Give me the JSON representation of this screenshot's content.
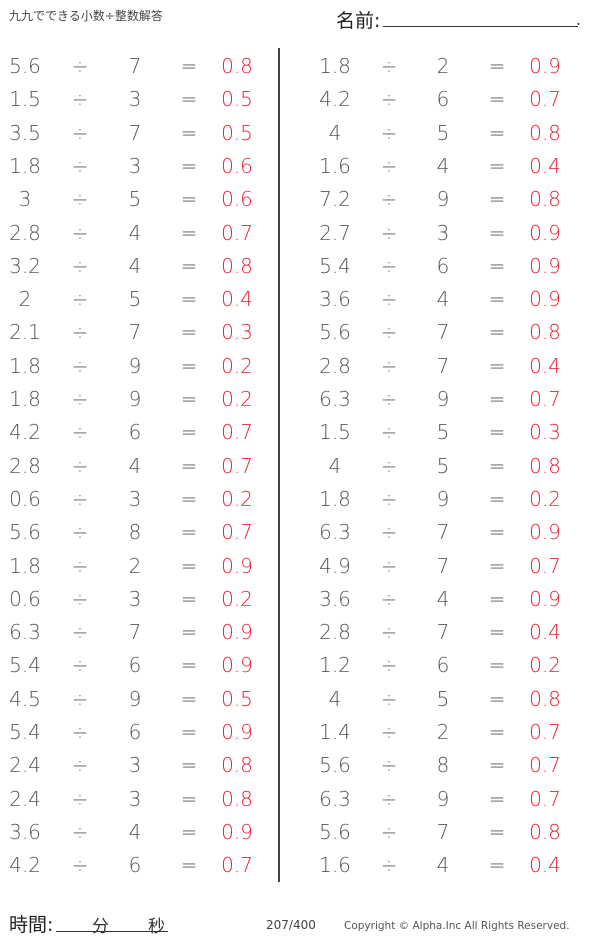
{
  "header": {
    "title": "九九でできる小数÷整数解答",
    "name_label": "名前:",
    "name_end": "."
  },
  "symbols": {
    "divide": "÷",
    "equals": "="
  },
  "left": [
    [
      "5.6",
      "7",
      "0.8"
    ],
    [
      "1.5",
      "3",
      "0.5"
    ],
    [
      "3.5",
      "7",
      "0.5"
    ],
    [
      "1.8",
      "3",
      "0.6"
    ],
    [
      "3",
      "5",
      "0.6"
    ],
    [
      "2.8",
      "4",
      "0.7"
    ],
    [
      "3.2",
      "4",
      "0.8"
    ],
    [
      "2",
      "5",
      "0.4"
    ],
    [
      "2.1",
      "7",
      "0.3"
    ],
    [
      "1.8",
      "9",
      "0.2"
    ],
    [
      "1.8",
      "9",
      "0.2"
    ],
    [
      "4.2",
      "6",
      "0.7"
    ],
    [
      "2.8",
      "4",
      "0.7"
    ],
    [
      "0.6",
      "3",
      "0.2"
    ],
    [
      "5.6",
      "8",
      "0.7"
    ],
    [
      "1.8",
      "2",
      "0.9"
    ],
    [
      "0.6",
      "3",
      "0.2"
    ],
    [
      "6.3",
      "7",
      "0.9"
    ],
    [
      "5.4",
      "6",
      "0.9"
    ],
    [
      "4.5",
      "9",
      "0.5"
    ],
    [
      "5.4",
      "6",
      "0.9"
    ],
    [
      "2.4",
      "3",
      "0.8"
    ],
    [
      "2.4",
      "3",
      "0.8"
    ],
    [
      "3.6",
      "4",
      "0.9"
    ],
    [
      "4.2",
      "6",
      "0.7"
    ]
  ],
  "right": [
    [
      "1.8",
      "2",
      "0.9"
    ],
    [
      "4.2",
      "6",
      "0.7"
    ],
    [
      "4",
      "5",
      "0.8"
    ],
    [
      "1.6",
      "4",
      "0.4"
    ],
    [
      "7.2",
      "9",
      "0.8"
    ],
    [
      "2.7",
      "3",
      "0.9"
    ],
    [
      "5.4",
      "6",
      "0.9"
    ],
    [
      "3.6",
      "4",
      "0.9"
    ],
    [
      "5.6",
      "7",
      "0.8"
    ],
    [
      "2.8",
      "7",
      "0.4"
    ],
    [
      "6.3",
      "9",
      "0.7"
    ],
    [
      "1.5",
      "5",
      "0.3"
    ],
    [
      "4",
      "5",
      "0.8"
    ],
    [
      "1.8",
      "9",
      "0.2"
    ],
    [
      "6.3",
      "7",
      "0.9"
    ],
    [
      "4.9",
      "7",
      "0.7"
    ],
    [
      "3.6",
      "4",
      "0.9"
    ],
    [
      "2.8",
      "7",
      "0.4"
    ],
    [
      "1.2",
      "6",
      "0.2"
    ],
    [
      "4",
      "5",
      "0.8"
    ],
    [
      "1.4",
      "2",
      "0.7"
    ],
    [
      "5.6",
      "8",
      "0.7"
    ],
    [
      "6.3",
      "9",
      "0.7"
    ],
    [
      "5.6",
      "7",
      "0.8"
    ],
    [
      "1.6",
      "4",
      "0.4"
    ]
  ],
  "colors": {
    "answer": "#e8203a"
  },
  "footer": {
    "time_label": "時間:",
    "minutes": "分",
    "seconds": "秒",
    "page": "207/400",
    "copyright": "Copyright ©  Alpha.Inc All Rights Reserved."
  }
}
